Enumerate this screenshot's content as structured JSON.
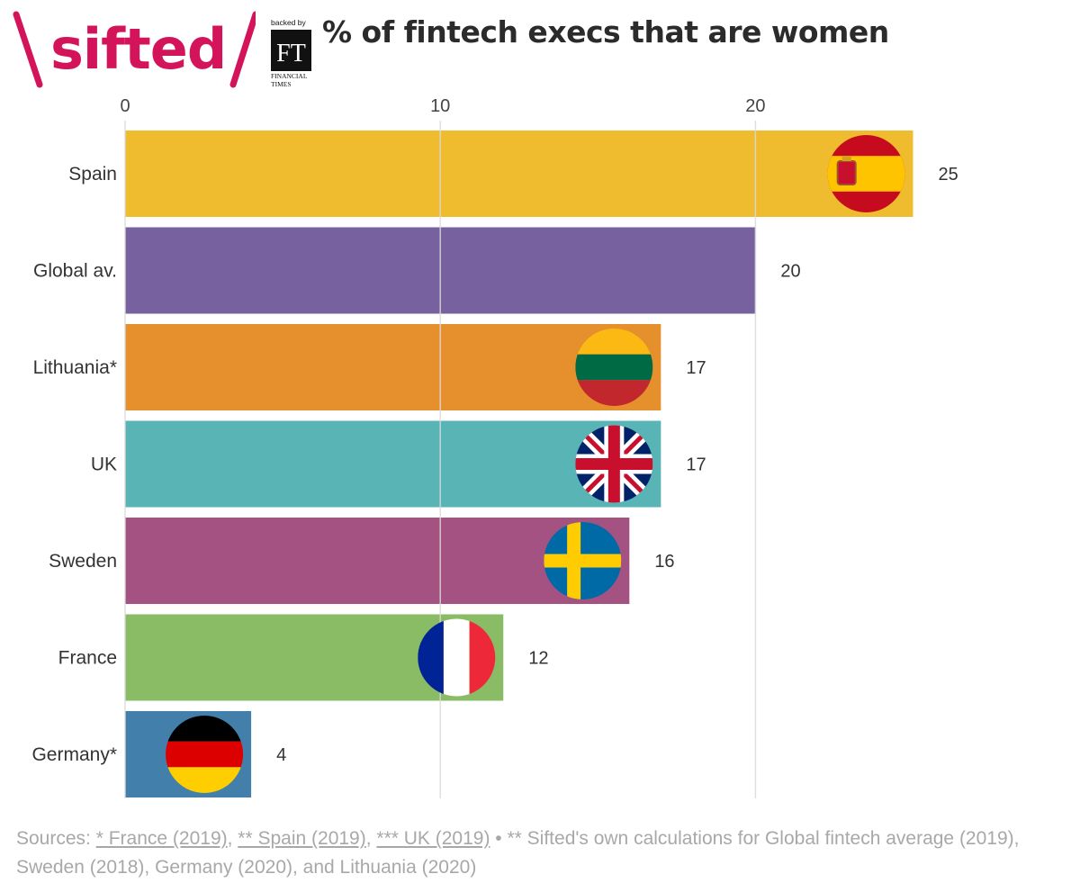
{
  "brand": {
    "logo_text": "sifted",
    "backed_by": "backed by",
    "ft_mark": "FT",
    "ft_line1": "FINANCIAL",
    "ft_line2": "TIMES",
    "brand_color": "#d3145a"
  },
  "chart_data": {
    "type": "bar",
    "orientation": "horizontal",
    "title": "% of fintech execs that are women",
    "xlim": [
      0,
      25
    ],
    "xticks": [
      0,
      10,
      20
    ],
    "grid": true,
    "categories": [
      "Spain",
      "Global av.",
      "Lithuania*",
      "UK",
      "Sweden",
      "France",
      "Germany*"
    ],
    "values": [
      25,
      20,
      17,
      17,
      16,
      12,
      4
    ],
    "value_labels": [
      "25",
      "20",
      "17",
      "17",
      "16",
      "12",
      "4"
    ],
    "colors": [
      "#efbb2f",
      "#77629f",
      "#e5902c",
      "#59b5b5",
      "#a35281",
      "#8abb65",
      "#4280ab"
    ],
    "flags": [
      "spain-flag",
      null,
      "lithuania-flag",
      "uk-flag",
      "sweden-flag",
      "france-flag",
      "germany-flag"
    ]
  },
  "sources": {
    "prefix": "Sources: ",
    "link1": "* France (2019)",
    "sep1": ", ",
    "link2": "** Spain (2019)",
    "sep2": ", ",
    "link3": "*** UK (2019)",
    "rest": " • ** Sifted's own calculations for Global fintech average (2019), Sweden (2018), Germany (2020), and Lithuania (2020)"
  }
}
